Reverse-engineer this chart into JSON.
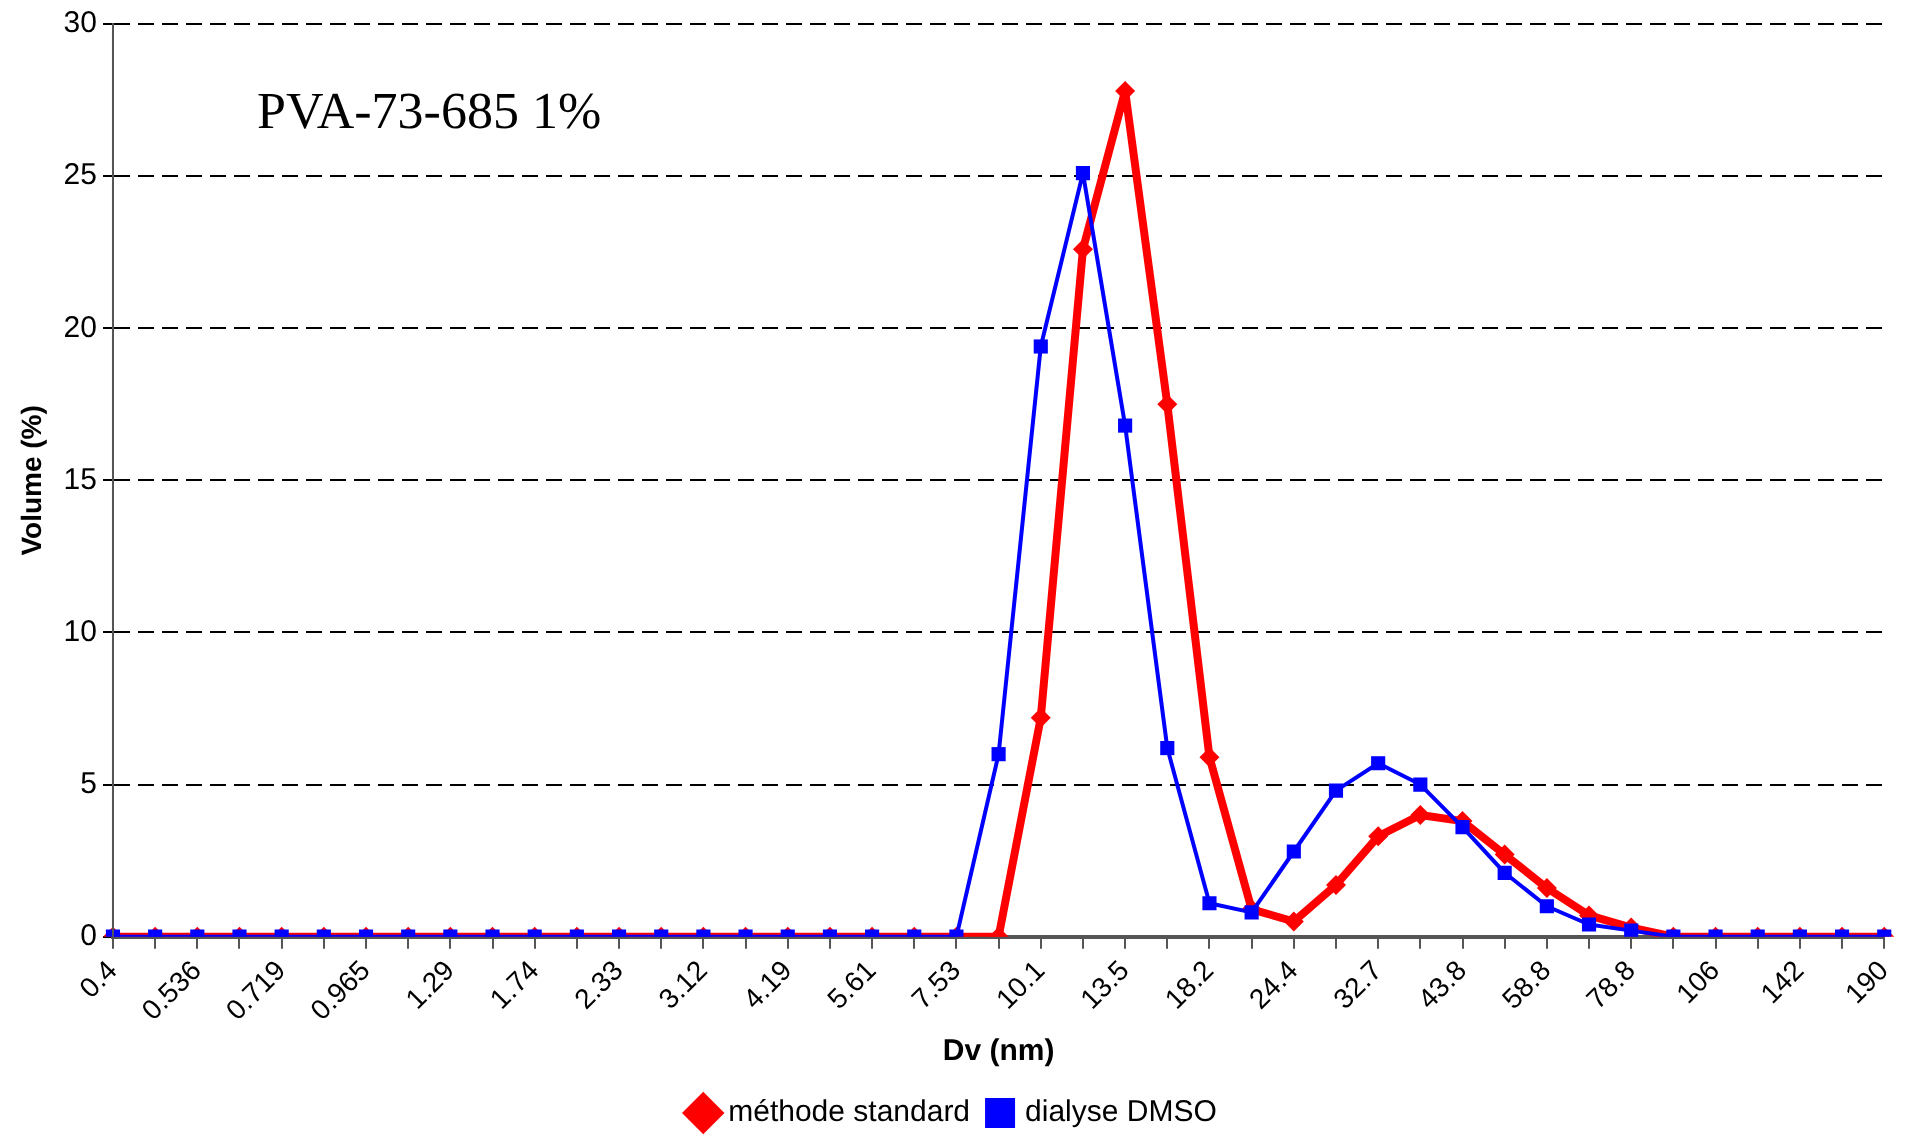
{
  "chart_data": {
    "type": "line",
    "xlabel": "Dv (nm)",
    "ylabel": "Volume (%)",
    "annotations": [
      "PVA-73-685 1%"
    ],
    "categories": [
      "0.4",
      null,
      "0.536",
      null,
      "0.719",
      null,
      "0.965",
      null,
      "1.29",
      null,
      "1.74",
      null,
      "2.33",
      null,
      "3.12",
      null,
      "4.19",
      null,
      "5.61",
      null,
      "7.53",
      null,
      "10.1",
      null,
      "13.5",
      null,
      "18.2",
      null,
      "24.4",
      null,
      "32.7",
      null,
      "43.8",
      null,
      "58.8",
      null,
      "78.8",
      null,
      "106",
      null,
      "142",
      null,
      "190"
    ],
    "series": [
      {
        "name": "méthode standard",
        "color": "#ff0000",
        "marker": "diamond",
        "values": [
          0,
          0,
          0,
          0,
          0,
          0,
          0,
          0,
          0,
          0,
          0,
          0,
          0,
          0,
          0,
          0,
          0,
          0,
          0,
          0,
          0,
          0,
          7.2,
          22.6,
          27.8,
          17.5,
          5.9,
          0.9,
          0.5,
          1.7,
          3.3,
          4.0,
          3.8,
          2.7,
          1.6,
          0.7,
          0.3,
          0,
          0,
          0,
          0,
          0,
          0
        ]
      },
      {
        "name": "dialyse DMSO",
        "color": "#0000ff",
        "marker": "square",
        "values": [
          0,
          0,
          0,
          0,
          0,
          0,
          0,
          0,
          0,
          0,
          0,
          0,
          0,
          0,
          0,
          0,
          0,
          0,
          0,
          0,
          0,
          6.0,
          19.4,
          25.1,
          16.8,
          6.2,
          1.1,
          0.8,
          2.8,
          4.8,
          5.7,
          5.0,
          3.6,
          2.1,
          1.0,
          0.4,
          0.2,
          0,
          0,
          0,
          0,
          0,
          0
        ]
      }
    ],
    "ylim": [
      0,
      30
    ],
    "yticks": [
      0,
      5,
      10,
      15,
      20,
      25,
      30
    ],
    "grid": "y",
    "line_style": "solid",
    "legend": "bottom"
  }
}
